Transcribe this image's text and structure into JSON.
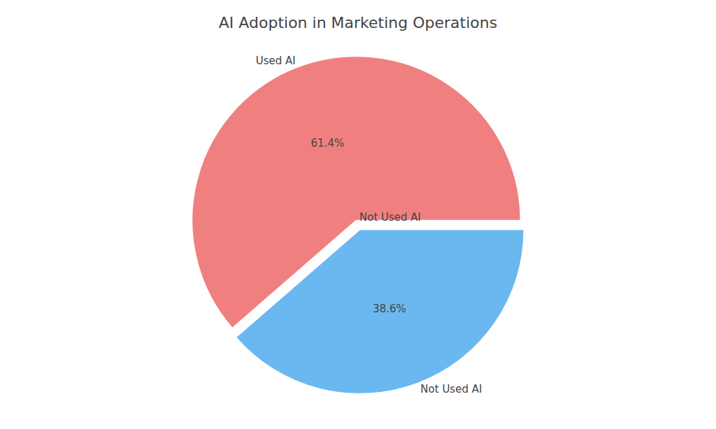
{
  "chart_data": {
    "type": "pie",
    "title": "AI Adoption in Marketing Operations",
    "categories": [
      "Not Used AI",
      "Used AI"
    ],
    "values": [
      38.6,
      61.4
    ],
    "value_labels": [
      "38.6%",
      "61.4%"
    ],
    "colors": [
      "#6bb8f0",
      "#f08080"
    ],
    "data_labels": true,
    "annotations": [
      "Not Used AI"
    ]
  }
}
